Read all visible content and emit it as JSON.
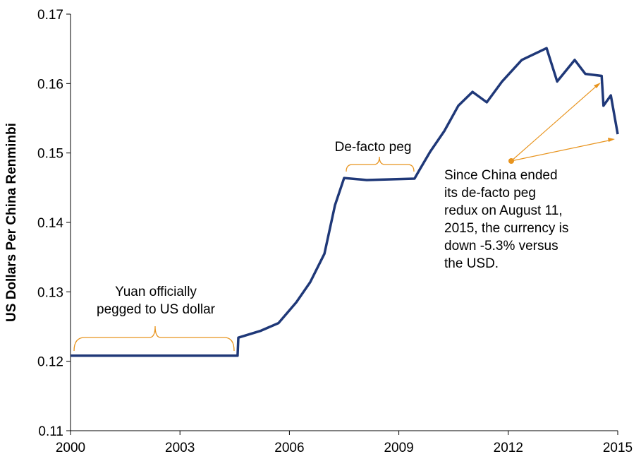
{
  "chart_data": {
    "type": "line",
    "y_label": "US Dollars Per China Renminbi",
    "x": [
      2000,
      2004.58,
      2004.6,
      2005.22,
      2005.7,
      2006.19,
      2006.57,
      2006.96,
      2007.25,
      2007.5,
      2008.12,
      2009.43,
      2009.57,
      2009.86,
      2010.25,
      2010.63,
      2011.02,
      2011.41,
      2011.83,
      2012.37,
      2013.05,
      2013.34,
      2013.82,
      2014.11,
      2014.56,
      2014.61,
      2014.81,
      2015
    ],
    "series": [
      {
        "color": "#1f3878",
        "values": [
          0.1208,
          0.1208,
          0.1234,
          0.1244,
          0.1255,
          0.1285,
          0.1314,
          0.1355,
          0.1425,
          0.1464,
          0.1461,
          0.1463,
          0.1476,
          0.1502,
          0.1532,
          0.1568,
          0.1588,
          0.1573,
          0.1603,
          0.1634,
          0.1651,
          0.1603,
          0.1634,
          0.1614,
          0.1611,
          0.1568,
          0.1583,
          0.1527
        ]
      }
    ],
    "xlim": [
      2000,
      2015
    ],
    "xticks": [
      2000,
      2003,
      2006,
      2009,
      2012,
      2015
    ],
    "ylim": [
      0.11,
      0.17
    ],
    "yticks": [
      0.11,
      0.12,
      0.13,
      0.14,
      0.15,
      0.16,
      0.17
    ],
    "annotations": [
      {
        "lines": [
          "Yuan officially",
          "pegged to US dollar"
        ]
      },
      {
        "lines": [
          "De-facto peg"
        ]
      },
      {
        "lines": [
          "Since China ended",
          "its de-facto peg",
          "redux on August 11,",
          "2015, the currency is",
          "down -5.3% versus",
          "the USD."
        ]
      }
    ]
  }
}
